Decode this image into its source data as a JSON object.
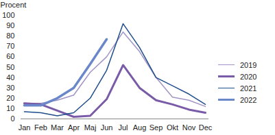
{
  "chart_data": {
    "type": "line",
    "y_label": "Procent",
    "categories": [
      "Jan",
      "Feb",
      "Mar",
      "Apr",
      "Maj",
      "Jun",
      "Jul",
      "Aug",
      "Sep",
      "Okt",
      "Nov",
      "Dec"
    ],
    "series": [
      {
        "name": "2019",
        "color": "#a294c6",
        "values": [
          15,
          15,
          18,
          23,
          45,
          60,
          84,
          65,
          40,
          21,
          18,
          12
        ]
      },
      {
        "name": "2020",
        "color": "#7a5ba8",
        "values": [
          15,
          14,
          8,
          2,
          3,
          19,
          52,
          30,
          18,
          14,
          9,
          6
        ]
      },
      {
        "name": "2021",
        "color": "#1f4e8c",
        "values": [
          7,
          6,
          3,
          6,
          20,
          47,
          92,
          69,
          40,
          32,
          24,
          14
        ]
      },
      {
        "name": "2022",
        "color": "#6a87c9",
        "values": [
          13,
          13,
          20,
          30,
          53,
          77,
          null,
          null,
          null,
          null,
          null,
          null
        ]
      }
    ],
    "ylim": [
      0,
      100
    ],
    "yticks": [
      0,
      10,
      20,
      30,
      40,
      50,
      60,
      70,
      80,
      90,
      100
    ],
    "grid": false,
    "legend": "right"
  }
}
